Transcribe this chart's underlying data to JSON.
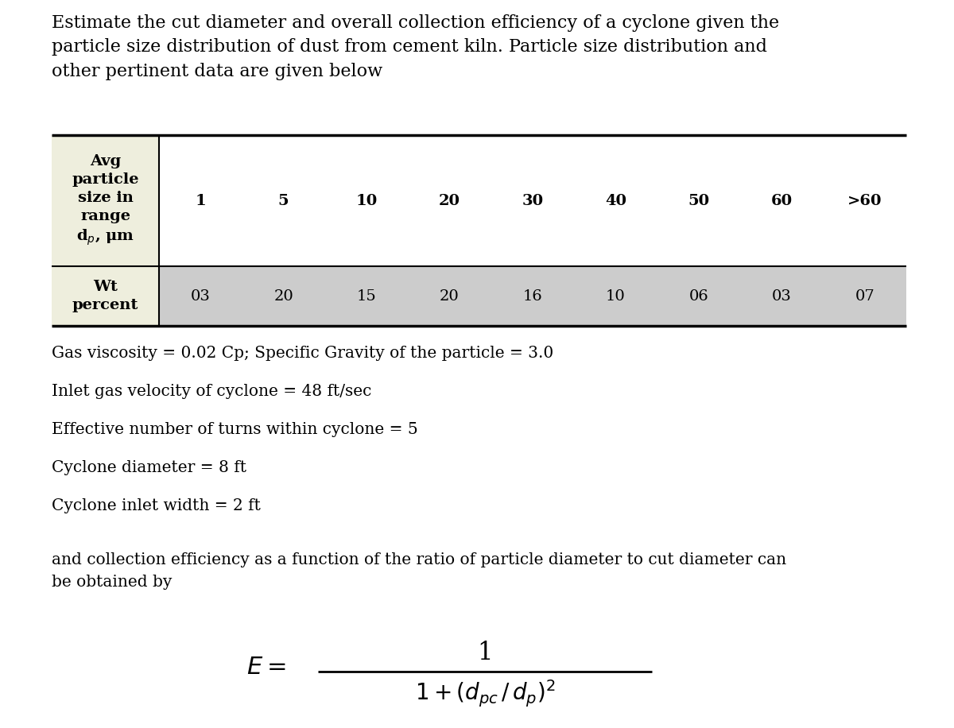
{
  "title_text": "Estimate the cut diameter and overall collection efficiency of a cyclone given the\nparticle size distribution of dust from cement kiln. Particle size distribution and\nother pertinent data are given below",
  "table_header_nums": [
    "1",
    "5",
    "10",
    "20",
    "30",
    "40",
    "50",
    "60",
    ">60"
  ],
  "table_row_label": "Wt\npercent",
  "table_values": [
    "03",
    "20",
    "15",
    "20",
    "16",
    "10",
    "06",
    "03",
    "07"
  ],
  "param1": "Gas viscosity = 0.02 Cp; Specific Gravity of the particle = 3.0",
  "param2": "Inlet gas velocity of cyclone = 48 ft/sec",
  "param3": "Effective number of turns within cyclone = 5",
  "param4": "Cyclone diameter = 8 ft",
  "param5": "Cyclone inlet width = 2 ft",
  "footer_text": "and collection efficiency as a function of the ratio of particle diameter to cut diameter can\nbe obtained by",
  "bg_color": "#ffffff",
  "table_header_bg": "#eeeedd",
  "table_row_bg": "#cccccc",
  "font_size_title": 16,
  "font_size_table": 14,
  "font_size_params": 14.5,
  "font_size_footer": 14.5
}
